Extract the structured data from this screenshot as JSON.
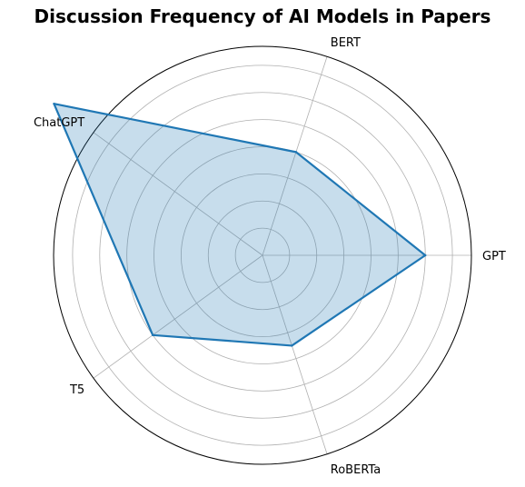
{
  "chart_data": {
    "type": "radar",
    "title": "Discussion Frequency of AI Models in Papers",
    "categories": [
      "GPT",
      "BERT",
      "ChatGPT",
      "T5",
      "RoBERTa"
    ],
    "series": [
      {
        "values": [
          6,
          4,
          9.5,
          5,
          3.5
        ]
      }
    ],
    "rlim": [
      0,
      7.7
    ],
    "rgrid_step": 1,
    "grid": true,
    "colors": {
      "line": "#1f77b4",
      "fill": "#1f77b4",
      "fill_opacity": 0.25,
      "grid": "#b0b0b0",
      "outer_circle": "#000000"
    }
  }
}
